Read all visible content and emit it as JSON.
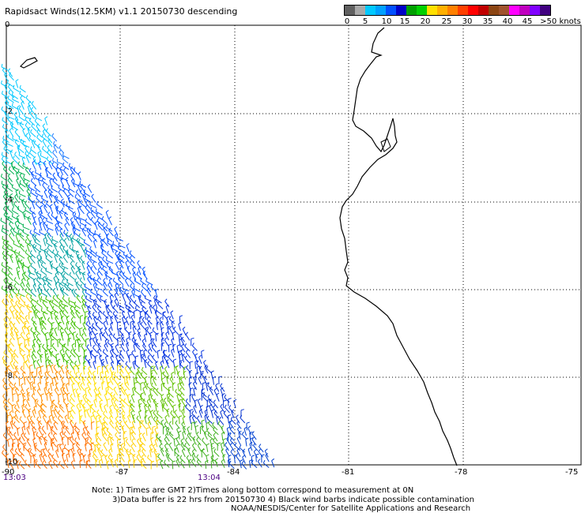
{
  "title": "Rapidsact Winds(12.5KM) v1.1 20150730 descending",
  "legend": {
    "colors": [
      "#606060",
      "#a8a8a8",
      "#00c8ff",
      "#00a0ff",
      "#0050ff",
      "#0000c8",
      "#00a000",
      "#00d000",
      "#ffe000",
      "#ffb000",
      "#ff8000",
      "#ff4000",
      "#ff0000",
      "#c00000",
      "#8b4513",
      "#a0522d",
      "#ff00ff",
      "#c000c0",
      "#8000ff",
      "#400080"
    ],
    "labels": [
      "0",
      "5",
      "10",
      "15",
      "20",
      "25",
      "30",
      "35",
      "40",
      "45",
      ">50 knots"
    ]
  },
  "axes": {
    "lat_labels": [
      "0",
      "-2",
      "-4",
      "-6",
      "-8",
      "-10"
    ],
    "lon_labels": [
      "-90",
      "-87",
      "-84",
      "-81",
      "-78",
      "-75"
    ]
  },
  "times": {
    "left": "13:03",
    "right": "13:04"
  },
  "notes": {
    "line1": "Note: 1) Times are GMT 2)Times along bottom correspond to measurement at 0N",
    "line2": "3)Data buffer is 22 hrs from 20150730 4) Black wind barbs indicate possible contamination",
    "line3": "NOAA/NESDIS/Center for Satellite Applications and Research"
  }
}
